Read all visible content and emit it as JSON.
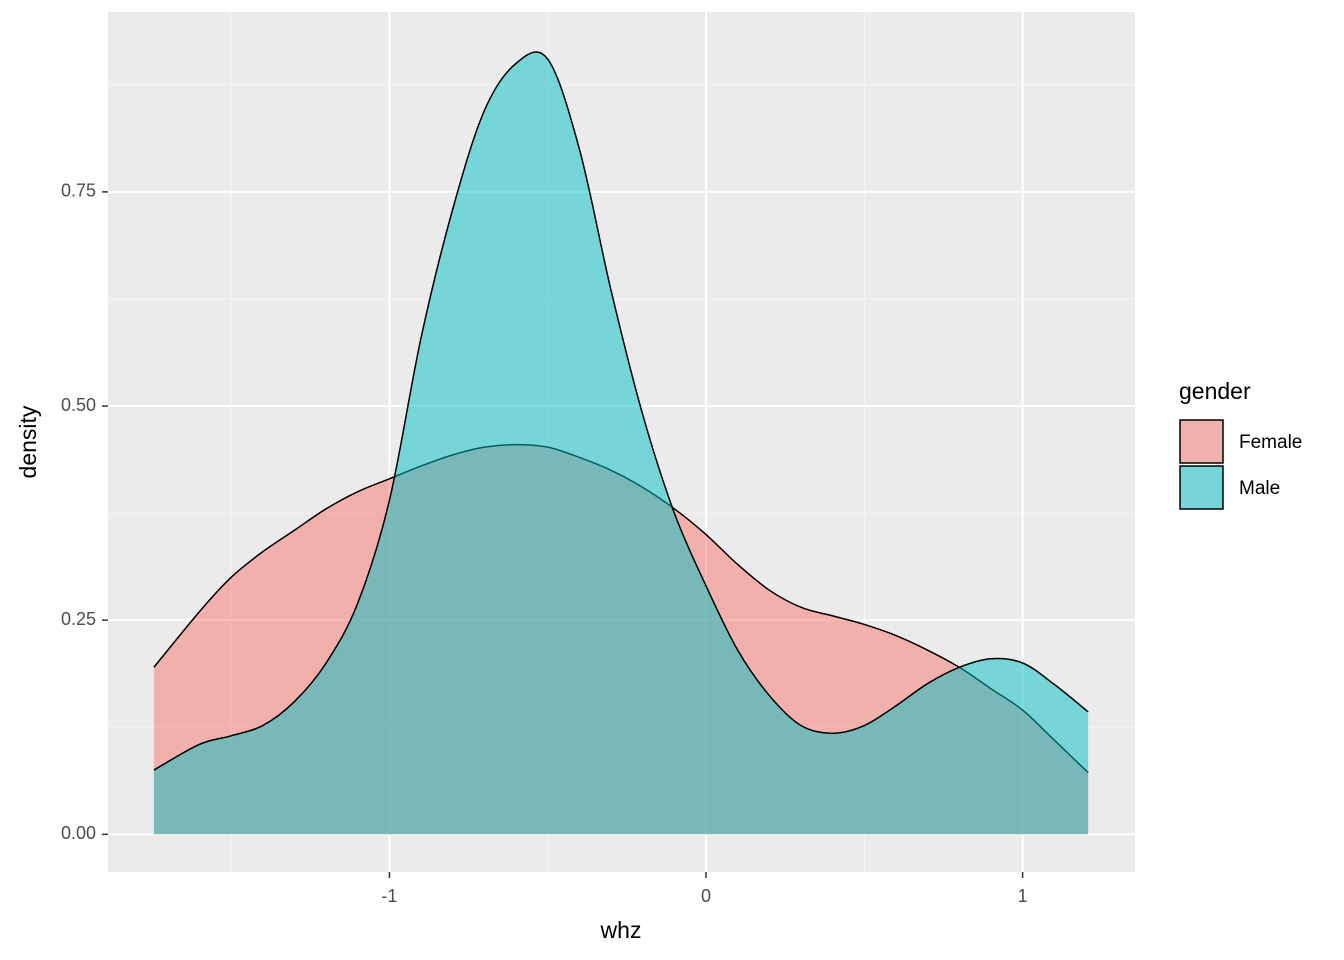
{
  "chart_data": {
    "type": "density",
    "x_label": "whz",
    "y_label": "density",
    "legend_title": "gender",
    "x": [
      -1.744,
      -1.6,
      -1.5,
      -1.4,
      -1.3,
      -1.2,
      -1.1,
      -1.0,
      -0.9,
      -0.8,
      -0.7,
      -0.6,
      -0.5,
      -0.4,
      -0.3,
      -0.2,
      -0.1,
      0,
      0.1,
      0.2,
      0.3,
      0.4,
      0.5,
      0.6,
      0.7,
      0.8,
      0.9,
      1.0,
      1.1,
      1.207
    ],
    "series": [
      {
        "name": "Female",
        "color": "#F8766D",
        "values": [
          0.195,
          0.26,
          0.3,
          0.33,
          0.355,
          0.38,
          0.4,
          0.415,
          0.43,
          0.443,
          0.452,
          0.455,
          0.452,
          0.44,
          0.425,
          0.405,
          0.38,
          0.35,
          0.315,
          0.285,
          0.265,
          0.255,
          0.245,
          0.232,
          0.215,
          0.195,
          0.17,
          0.145,
          0.11,
          0.072
        ]
      },
      {
        "name": "Male",
        "color": "#00BFC4",
        "values": [
          0.075,
          0.105,
          0.115,
          0.127,
          0.155,
          0.2,
          0.27,
          0.39,
          0.58,
          0.73,
          0.845,
          0.9,
          0.905,
          0.8,
          0.635,
          0.49,
          0.375,
          0.29,
          0.215,
          0.162,
          0.127,
          0.118,
          0.127,
          0.15,
          0.176,
          0.195,
          0.205,
          0.2,
          0.175,
          0.143
        ]
      }
    ],
    "fill_opacity": 0.5,
    "xlim": [
      -1.889,
      1.355
    ],
    "ylim": [
      -0.044,
      0.96
    ],
    "xticks": [
      -1,
      0,
      1
    ],
    "yticks": [
      {
        "value": 0,
        "label": "0.00"
      },
      0.25,
      {
        "value": 0.5,
        "label": "0.50"
      },
      0.75
    ],
    "grid": true,
    "minor_grid": true,
    "legend_position": "right"
  }
}
